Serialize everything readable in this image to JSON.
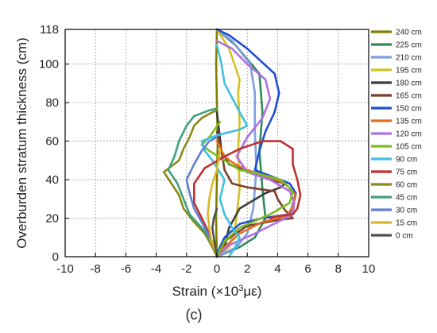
{
  "chart_data": {
    "type": "line",
    "xlabel_prefix": "Strain (×10",
    "xlabel_exp": "3",
    "xlabel_suffix": "με)",
    "ylabel": "Overburden stratum thickness (cm)",
    "caption": "(c)",
    "xlim": [
      -10,
      10
    ],
    "ylim": [
      0,
      118
    ],
    "xticks": [
      -10,
      -8,
      -6,
      -4,
      -2,
      0,
      2,
      4,
      6,
      8,
      10
    ],
    "yticks": [
      0,
      20,
      40,
      60,
      80,
      100,
      118
    ],
    "grid": true,
    "legend_position": "right",
    "series": [
      {
        "name": "240 cm",
        "color": "#808000",
        "points": [
          [
            0,
            118
          ],
          [
            -0.05,
            100
          ],
          [
            0,
            80
          ],
          [
            0.05,
            60
          ],
          [
            0,
            40
          ],
          [
            -0.05,
            20
          ],
          [
            0,
            0
          ]
        ]
      },
      {
        "name": "225 cm",
        "color": "#2e8b57",
        "points": [
          [
            0,
            0
          ],
          [
            1.5,
            5
          ],
          [
            2.5,
            10
          ],
          [
            3.2,
            20
          ],
          [
            3.0,
            35
          ],
          [
            2.8,
            55
          ],
          [
            3.0,
            75
          ],
          [
            2.8,
            95
          ],
          [
            1.2,
            110
          ],
          [
            0,
            118
          ]
        ]
      },
      {
        "name": "210 cm",
        "color": "#7d9ee0",
        "points": [
          [
            0,
            0
          ],
          [
            1.3,
            5
          ],
          [
            2.0,
            12
          ],
          [
            2.4,
            25
          ],
          [
            2.6,
            45
          ],
          [
            2.5,
            65
          ],
          [
            2.5,
            85
          ],
          [
            2.2,
            100
          ],
          [
            1.0,
            112
          ],
          [
            0,
            118
          ]
        ]
      },
      {
        "name": "195 cm",
        "color": "#d4c020",
        "points": [
          [
            0,
            0
          ],
          [
            0.8,
            5
          ],
          [
            1.2,
            15
          ],
          [
            1.5,
            35
          ],
          [
            1.4,
            55
          ],
          [
            1.5,
            70
          ],
          [
            1.4,
            85
          ],
          [
            1.5,
            92
          ],
          [
            0.8,
            108
          ],
          [
            0,
            118
          ]
        ]
      },
      {
        "name": "180 cm",
        "color": "#3c3c3c",
        "points": [
          [
            0,
            0
          ],
          [
            0.5,
            5
          ],
          [
            0.8,
            15
          ],
          [
            1.5,
            25
          ],
          [
            3.2,
            33
          ],
          [
            4.2,
            36
          ],
          [
            4.5,
            38
          ],
          [
            3.5,
            40
          ],
          [
            2.0,
            44
          ],
          [
            0.8,
            48
          ],
          [
            0.3,
            55
          ],
          [
            0,
            75
          ]
        ]
      },
      {
        "name": "165 cm",
        "color": "#7b3f2a",
        "points": [
          [
            0,
            0
          ],
          [
            0.3,
            3
          ],
          [
            0.5,
            8
          ],
          [
            2.0,
            16
          ],
          [
            4.0,
            19
          ],
          [
            5.0,
            20
          ],
          [
            4.5,
            24
          ],
          [
            4.0,
            30
          ],
          [
            3.8,
            34
          ],
          [
            2.0,
            36
          ],
          [
            1.0,
            38
          ],
          [
            0.5,
            45
          ],
          [
            0.3,
            55
          ],
          [
            0,
            65
          ]
        ]
      },
      {
        "name": "150 cm",
        "color": "#1f4fd0",
        "points": [
          [
            0,
            0
          ],
          [
            0.2,
            5
          ],
          [
            0.5,
            10
          ],
          [
            1.5,
            17
          ],
          [
            3.0,
            20
          ],
          [
            4.8,
            22
          ],
          [
            5.0,
            27
          ],
          [
            5.2,
            33
          ],
          [
            4.8,
            38
          ],
          [
            3.5,
            42
          ],
          [
            2.5,
            45
          ],
          [
            2.8,
            55
          ],
          [
            3.2,
            65
          ],
          [
            3.8,
            75
          ],
          [
            4.1,
            85
          ],
          [
            3.8,
            95
          ],
          [
            2.0,
            108
          ],
          [
            0.8,
            115
          ],
          [
            0,
            118
          ]
        ]
      },
      {
        "name": "135 cm",
        "color": "#e07020",
        "points": [
          [
            0,
            0
          ],
          [
            0.5,
            5
          ],
          [
            1.5,
            12
          ],
          [
            3.0,
            18
          ],
          [
            4.6,
            21
          ],
          [
            5.0,
            26
          ],
          [
            5.2,
            32
          ],
          [
            4.5,
            38
          ],
          [
            3.2,
            42
          ],
          [
            2.0,
            45
          ],
          [
            1.2,
            48
          ],
          [
            0.5,
            52
          ],
          [
            0,
            60
          ]
        ]
      },
      {
        "name": "120 cm",
        "color": "#b070e0",
        "points": [
          [
            0,
            0
          ],
          [
            0.8,
            6
          ],
          [
            2.5,
            12
          ],
          [
            4.0,
            18
          ],
          [
            5.0,
            22
          ],
          [
            5.1,
            28
          ],
          [
            4.8,
            34
          ],
          [
            3.5,
            40
          ],
          [
            2.0,
            44
          ],
          [
            1.3,
            52
          ],
          [
            2.0,
            62
          ],
          [
            3.0,
            72
          ],
          [
            3.5,
            82
          ],
          [
            3.2,
            92
          ],
          [
            2.0,
            100
          ],
          [
            1.0,
            108
          ],
          [
            0,
            112
          ]
        ]
      },
      {
        "name": "105 cm",
        "color": "#7dbb20",
        "points": [
          [
            0,
            0
          ],
          [
            0.5,
            8
          ],
          [
            1.5,
            15
          ],
          [
            3.5,
            22
          ],
          [
            4.8,
            28
          ],
          [
            5.0,
            34
          ],
          [
            4.2,
            40
          ],
          [
            2.8,
            43
          ],
          [
            1.5,
            45
          ],
          [
            0.5,
            50
          ],
          [
            -0.5,
            55
          ],
          [
            -1.0,
            58
          ],
          [
            -0.5,
            62
          ],
          [
            0.2,
            70
          ]
        ]
      },
      {
        "name": "90 cm",
        "color": "#40c0e0",
        "points": [
          [
            0.8,
            0
          ],
          [
            1.2,
            5
          ],
          [
            1.5,
            10
          ],
          [
            1.0,
            15
          ],
          [
            0.5,
            22
          ],
          [
            0.2,
            30
          ],
          [
            0.5,
            40
          ],
          [
            -0.3,
            50
          ],
          [
            -0.8,
            55
          ],
          [
            -1.0,
            60
          ],
          [
            0,
            63
          ],
          [
            1.5,
            66
          ],
          [
            2.0,
            68
          ],
          [
            1.5,
            75
          ],
          [
            0.5,
            90
          ],
          [
            0.3,
            100
          ],
          [
            0,
            110
          ]
        ]
      },
      {
        "name": "75 cm",
        "color": "#c03030",
        "points": [
          [
            0,
            0
          ],
          [
            -0.2,
            5
          ],
          [
            -0.5,
            12
          ],
          [
            -1.0,
            20
          ],
          [
            -1.5,
            28
          ],
          [
            -1.5,
            38
          ],
          [
            -0.8,
            46
          ],
          [
            0.5,
            52
          ],
          [
            1.5,
            56
          ],
          [
            3.0,
            60
          ],
          [
            4.2,
            60
          ],
          [
            5.0,
            56
          ],
          [
            5.0,
            48
          ],
          [
            5.3,
            40
          ],
          [
            5.5,
            32
          ],
          [
            5.3,
            25
          ],
          [
            5.0,
            22
          ],
          [
            4.0,
            21
          ],
          [
            3.5,
            20
          ]
        ]
      },
      {
        "name": "60 cm",
        "color": "#8a8a18",
        "points": [
          [
            0,
            0
          ],
          [
            -0.3,
            5
          ],
          [
            -0.8,
            12
          ],
          [
            -1.5,
            18
          ],
          [
            -2.2,
            25
          ],
          [
            -2.5,
            32
          ],
          [
            -3.0,
            38
          ],
          [
            -3.5,
            44
          ],
          [
            -2.5,
            50
          ],
          [
            -2.2,
            56
          ],
          [
            -1.8,
            62
          ],
          [
            -1.5,
            68
          ],
          [
            -1.0,
            72
          ],
          [
            -0.3,
            75
          ],
          [
            0,
            76
          ]
        ]
      },
      {
        "name": "45 cm",
        "color": "#40a080",
        "points": [
          [
            0,
            0
          ],
          [
            -0.3,
            8
          ],
          [
            -1.0,
            15
          ],
          [
            -1.8,
            22
          ],
          [
            -2.2,
            30
          ],
          [
            -2.6,
            38
          ],
          [
            -3.2,
            45
          ],
          [
            -2.8,
            52
          ],
          [
            -2.5,
            60
          ],
          [
            -2.0,
            68
          ],
          [
            -1.5,
            73
          ],
          [
            -0.5,
            76
          ],
          [
            0,
            77
          ]
        ]
      },
      {
        "name": "30 cm",
        "color": "#6080d0",
        "points": [
          [
            0,
            0
          ],
          [
            -0.2,
            6
          ],
          [
            -0.6,
            12
          ],
          [
            -1.0,
            18
          ],
          [
            -1.5,
            25
          ],
          [
            -1.8,
            33
          ],
          [
            -2.0,
            40
          ],
          [
            -1.5,
            48
          ],
          [
            -1.0,
            55
          ],
          [
            -0.5,
            60
          ],
          [
            0,
            62
          ]
        ]
      },
      {
        "name": "15 cm",
        "color": "#d8b828",
        "points": [
          [
            0,
            0
          ],
          [
            -0.2,
            5
          ],
          [
            -0.4,
            10
          ],
          [
            -0.5,
            15
          ],
          [
            -0.6,
            22
          ],
          [
            -0.5,
            30
          ],
          [
            -0.3,
            38
          ],
          [
            0,
            45
          ],
          [
            0.2,
            55
          ]
        ]
      },
      {
        "name": "0 cm",
        "color": "#505050",
        "points": [
          [
            0,
            0
          ],
          [
            -0.1,
            5
          ],
          [
            -0.2,
            10
          ],
          [
            -0.3,
            15
          ],
          [
            -0.2,
            20
          ],
          [
            0,
            25
          ]
        ]
      }
    ]
  }
}
